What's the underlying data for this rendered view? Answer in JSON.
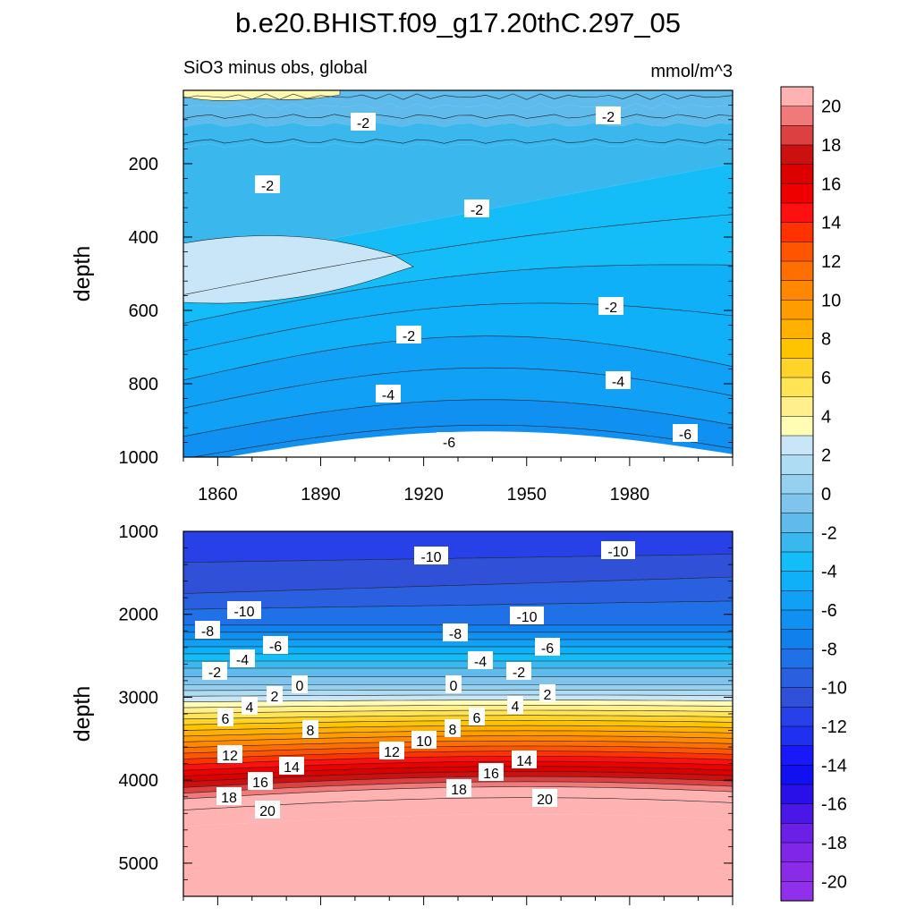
{
  "chart_data": {
    "type": "contour",
    "title": "b.e20.BHIST.f09_g17.20thC.297_05",
    "units": "mmol/m^3",
    "variable_label": "SiO3 minus obs, global",
    "x_ticks": [
      "1860",
      "1890",
      "1920",
      "1950",
      "1980"
    ],
    "x_range": [
      1850,
      2010
    ],
    "top_panel": {
      "ylabel": "depth",
      "ylim": [
        0,
        1000
      ],
      "y_ticks": [
        "200",
        "400",
        "600",
        "800",
        "1000"
      ],
      "contour_labels": [
        "-2",
        "-2",
        "-2",
        "-2",
        "-2",
        "-2",
        "-4",
        "-4",
        "-6",
        "-6"
      ]
    },
    "bottom_panel": {
      "ylabel": "depth",
      "ylim": [
        1000,
        5400
      ],
      "y_ticks": [
        "1000",
        "2000",
        "3000",
        "4000",
        "5000"
      ],
      "contour_labels": [
        "-10",
        "-10",
        "-10",
        "-10",
        "-8",
        "-8",
        "-6",
        "-6",
        "-4",
        "-4",
        "-2",
        "-2",
        "0",
        "0",
        "2",
        "2",
        "4",
        "4",
        "6",
        "6",
        "8",
        "8",
        "10",
        "12",
        "12",
        "14",
        "14",
        "16",
        "16",
        "18",
        "18",
        "20",
        "20"
      ]
    },
    "colorbar": {
      "min": -21,
      "max": 21,
      "labels": [
        "20",
        "18",
        "16",
        "14",
        "12",
        "10",
        "8",
        "6",
        "4",
        "2",
        "0",
        "-2",
        "-4",
        "-6",
        "-8",
        "-10",
        "-12",
        "-14",
        "-16",
        "-18",
        "-20"
      ],
      "colors": [
        "#ffb2b2",
        "#f07979",
        "#dd4040",
        "#cc1010",
        "#dd0000",
        "#ee0000",
        "#ff1010",
        "#ff3200",
        "#ff5500",
        "#ff6e00",
        "#ff8800",
        "#ff9c00",
        "#ffb000",
        "#ffc400",
        "#ffd42a",
        "#ffe455",
        "#fff08c",
        "#fffcb6",
        "#c8e6f7",
        "#aedcf2",
        "#96d0ef",
        "#7ec4ec",
        "#5fbbeb",
        "#3ab8ee",
        "#14bdf8",
        "#10b0f8",
        "#10a0f5",
        "#1090f0",
        "#1080ec",
        "#2070e8",
        "#2a60e0",
        "#3050d8",
        "#2840e8",
        "#2030f0",
        "#1818f8",
        "#1010f0",
        "#2a10e8",
        "#4a18e6",
        "#6a20e6",
        "#7f26e8",
        "#8a2be8",
        "#9030ea"
      ]
    }
  }
}
